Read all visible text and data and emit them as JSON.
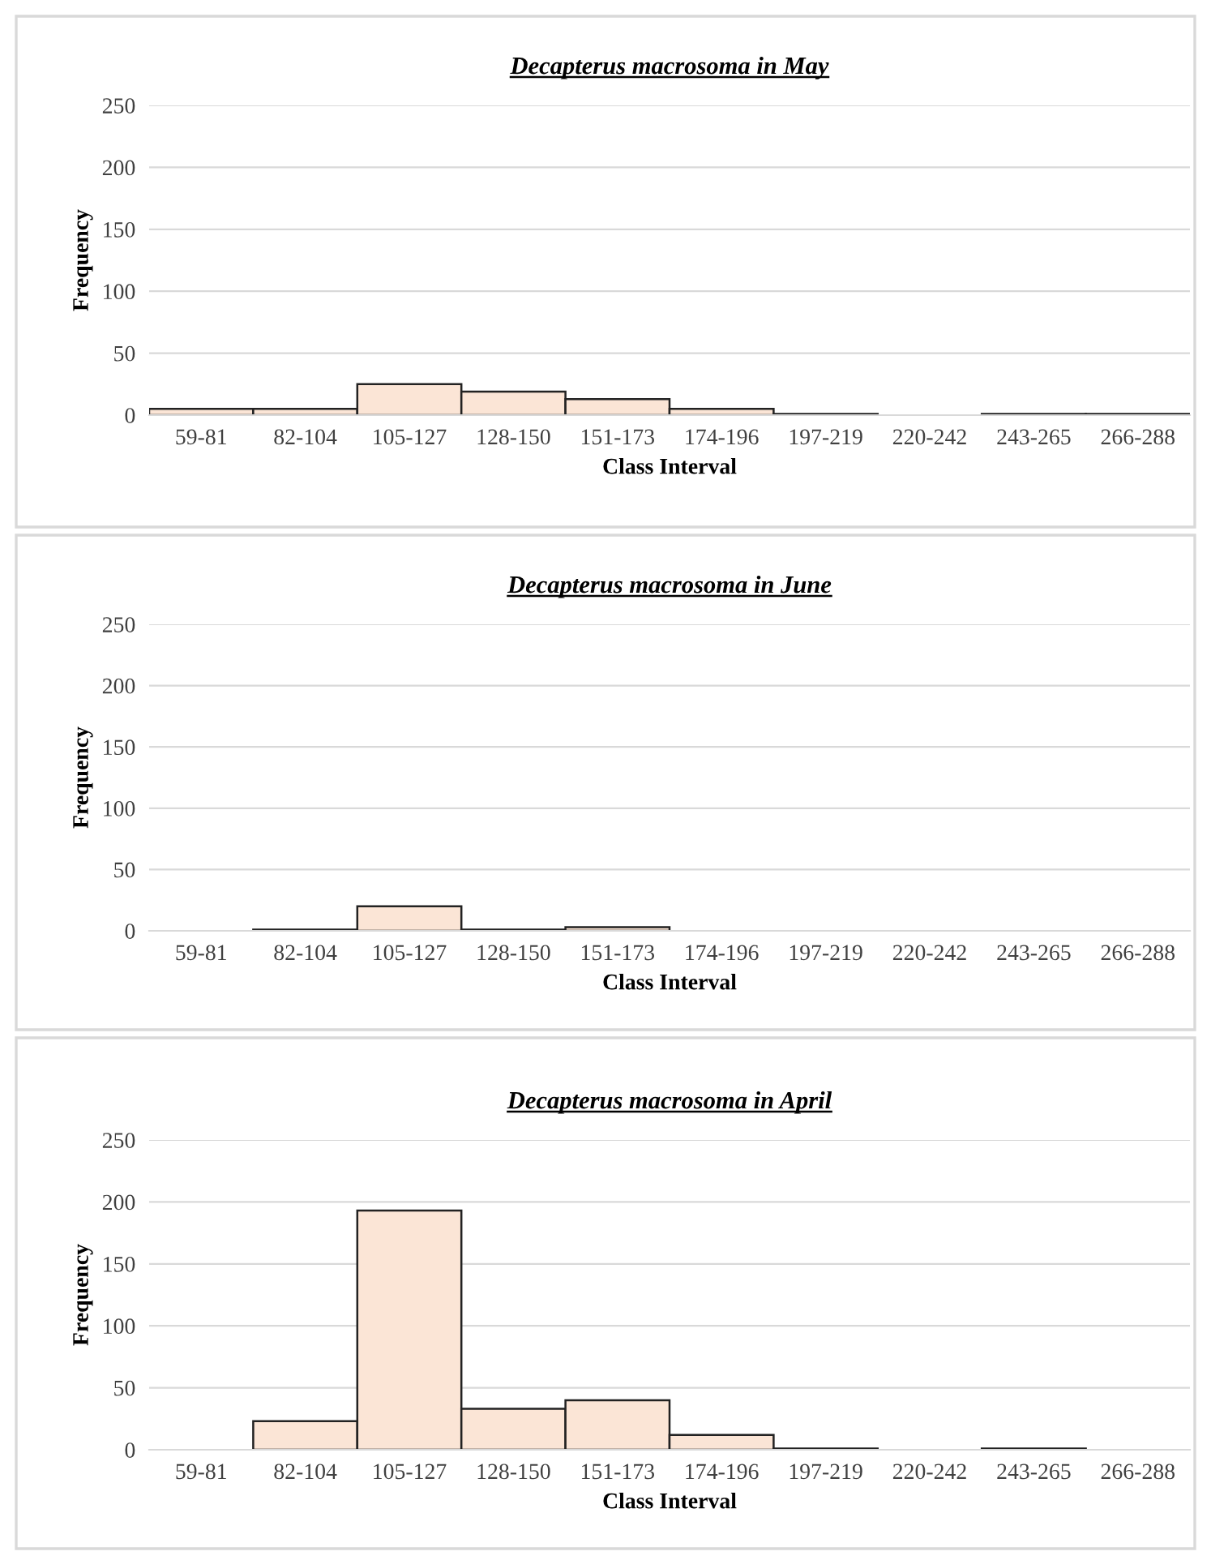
{
  "chart_data": [
    {
      "type": "bar",
      "title": "Decapterus macrosoma in May",
      "xlabel": "Class Interval",
      "ylabel": "Frequency",
      "categories": [
        "59-81",
        "82-104",
        "105-127",
        "128-150",
        "151-173",
        "174-196",
        "197-219",
        "220-242",
        "243-265",
        "266-288"
      ],
      "values": [
        5,
        5,
        25,
        19,
        13,
        5,
        1,
        0,
        1,
        1
      ],
      "color": "#fbe5d6",
      "ylim": [
        0,
        250
      ],
      "yticks": [
        0,
        50,
        100,
        150,
        200,
        250
      ],
      "grid": "y"
    },
    {
      "type": "bar",
      "title": "Decapterus macrosoma in June",
      "xlabel": "Class Interval",
      "ylabel": "Frequency",
      "categories": [
        "59-81",
        "82-104",
        "105-127",
        "128-150",
        "151-173",
        "174-196",
        "197-219",
        "220-242",
        "243-265",
        "266-288"
      ],
      "values": [
        0,
        1,
        20,
        1,
        3,
        0,
        0,
        0,
        0,
        0
      ],
      "color": "#fbe5d6",
      "ylim": [
        0,
        250
      ],
      "yticks": [
        0,
        50,
        100,
        150,
        200,
        250
      ],
      "grid": "y"
    },
    {
      "type": "bar",
      "title": "Decapterus macrosoma in April",
      "xlabel": "Class Interval",
      "ylabel": "Frequency",
      "categories": [
        "59-81",
        "82-104",
        "105-127",
        "128-150",
        "151-173",
        "174-196",
        "197-219",
        "220-242",
        "243-265",
        "266-288"
      ],
      "values": [
        0,
        23,
        193,
        33,
        40,
        12,
        1,
        0,
        1,
        0
      ],
      "color": "#fbe5d6",
      "ylim": [
        0,
        250
      ],
      "yticks": [
        0,
        50,
        100,
        150,
        200,
        250
      ],
      "grid": "y"
    }
  ]
}
